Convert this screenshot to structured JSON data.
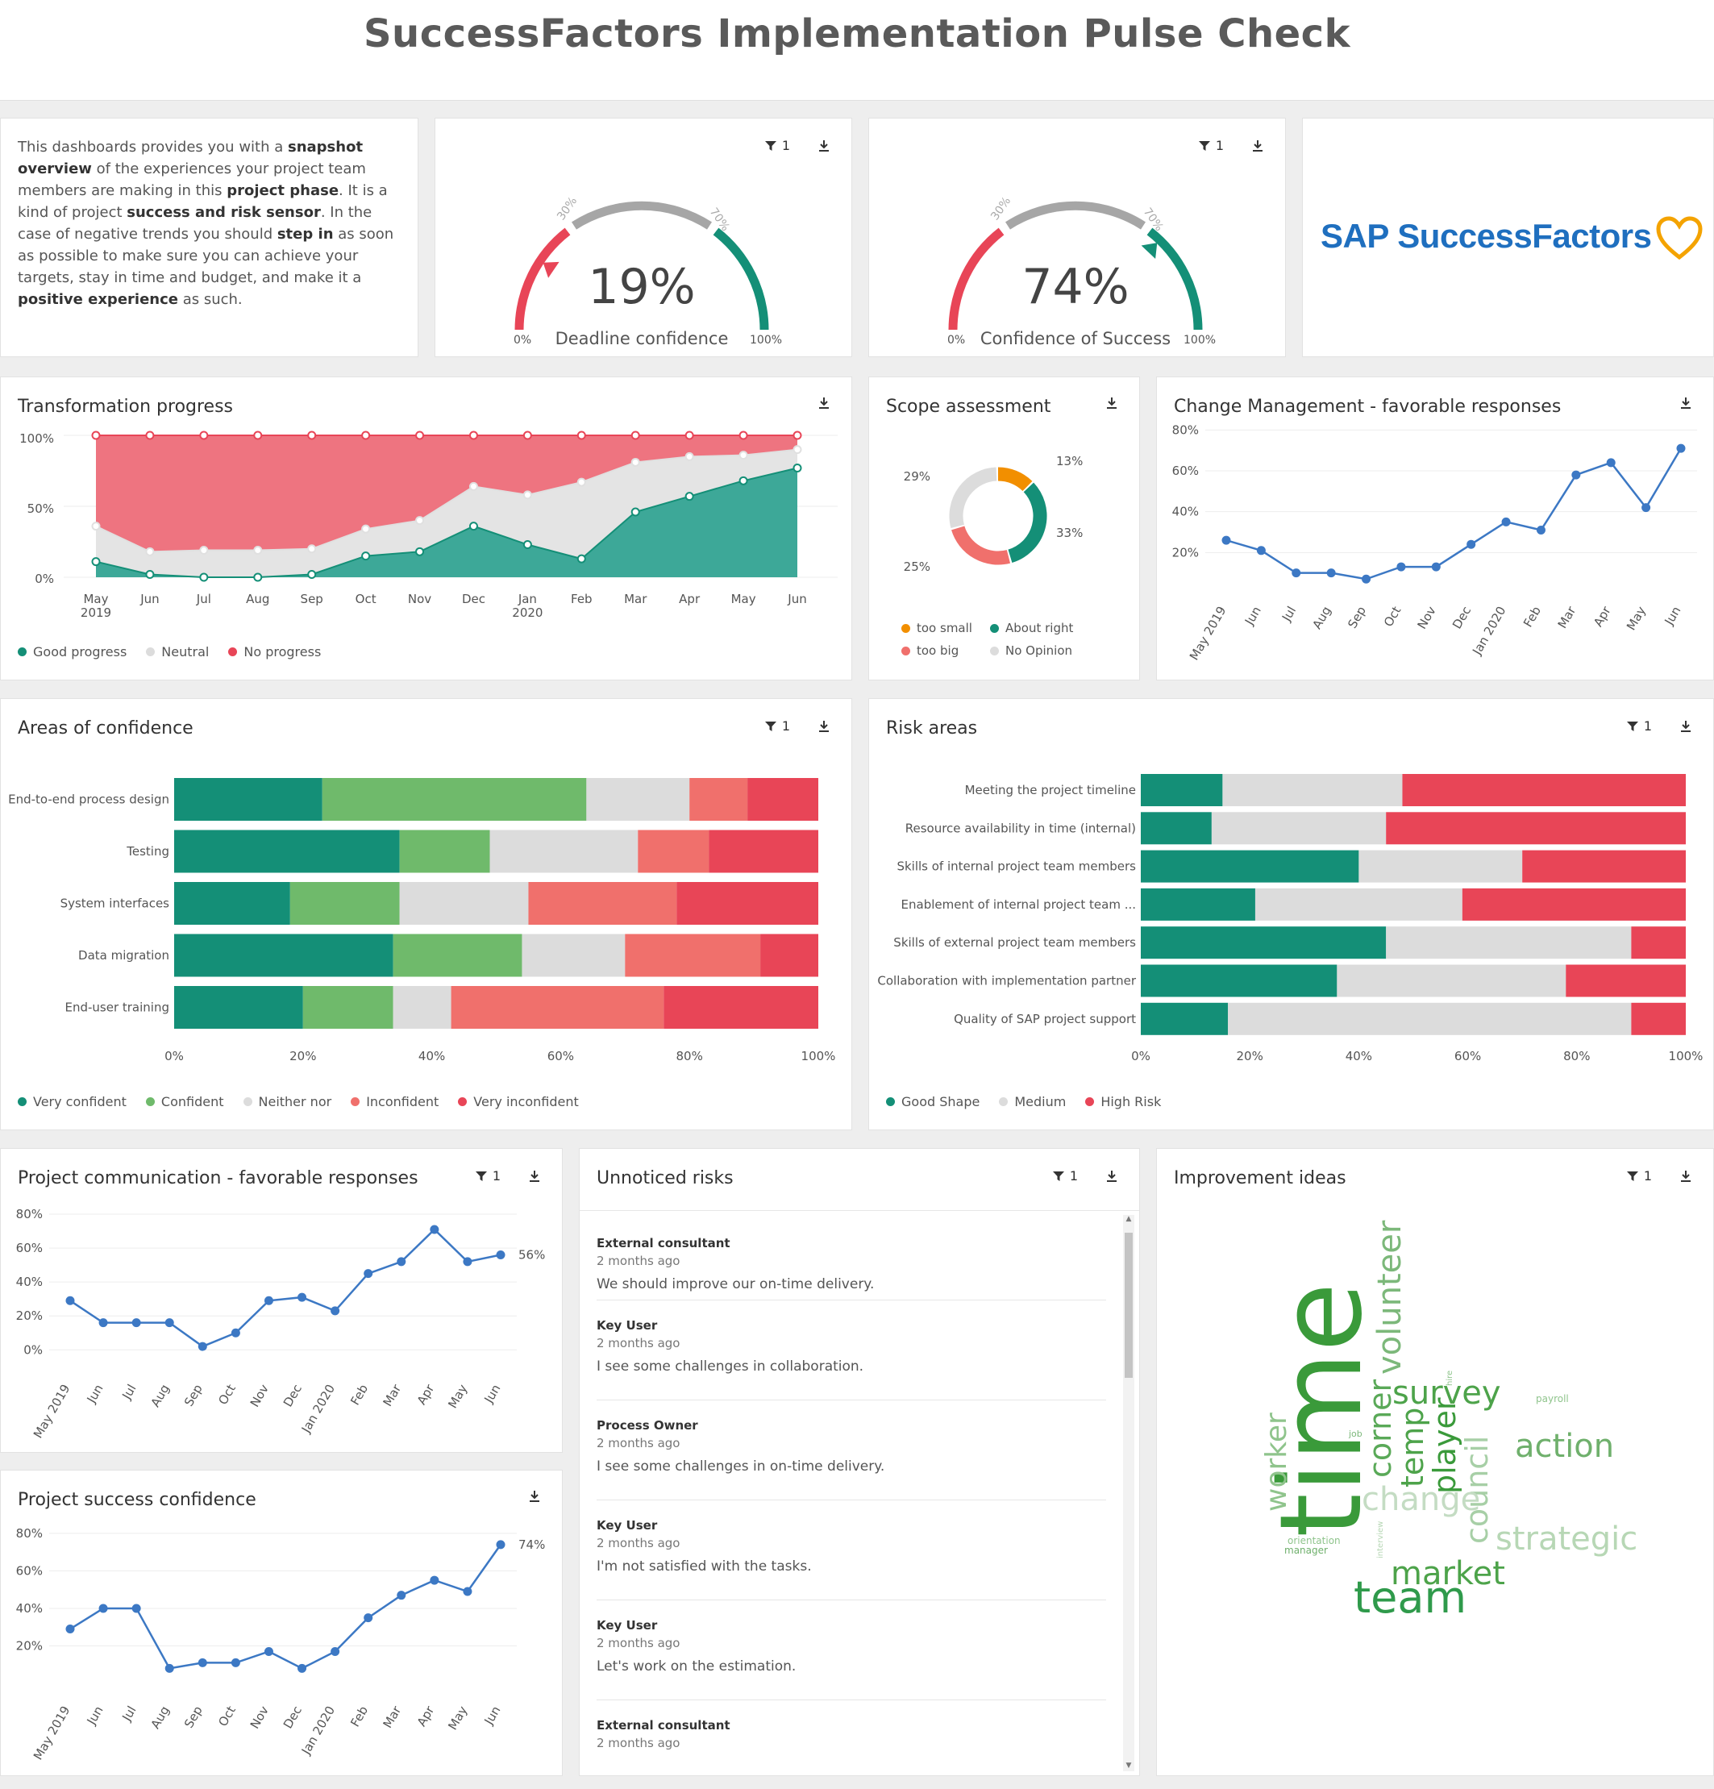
{
  "header": {
    "title": "SuccessFactors Implementation Pulse Check"
  },
  "intro": {
    "p1": "This dashboards provides you with a ",
    "b1": "snapshot overview",
    "p2": " of the experiences your project team members are making in this ",
    "b2": "project phase",
    "p3": ". It is a kind of project ",
    "b3": "success and risk sensor",
    "p4": ". In the case of negative trends you should ",
    "b4": "step in",
    "p5": " as soon as possible to make sure you can achieve your targets, stay in time and budget, and make it a ",
    "b5": "positive experience",
    "p6": " as such."
  },
  "filter_count": "1",
  "gauges": [
    {
      "value": 19,
      "value_label": "19%",
      "label": "Deadline confidence",
      "t30": "30%",
      "t70": "70%",
      "min": "0%",
      "max": "100%"
    },
    {
      "value": 74,
      "value_label": "74%",
      "label": "Confidence of Success",
      "t30": "30%",
      "t70": "70%",
      "min": "0%",
      "max": "100%"
    }
  ],
  "logo": {
    "text": "SAP SuccessFactors"
  },
  "colors": {
    "teal": "#148f77",
    "green": "#6fba6b",
    "grey": "#dcdcdc",
    "salmon": "#f0706c",
    "red": "#e84557",
    "orange": "#f28f00",
    "blue": "#3c78c4",
    "gauge_grey": "#a6a6a6"
  },
  "transformation": {
    "title": "Transformation progress",
    "yticks": [
      "100%",
      "50%",
      "0%"
    ],
    "xlabels": [
      [
        "May",
        "2019"
      ],
      [
        "Jun",
        ""
      ],
      [
        "Jul",
        ""
      ],
      [
        "Aug",
        ""
      ],
      [
        "Sep",
        ""
      ],
      [
        "Oct",
        ""
      ],
      [
        "Nov",
        ""
      ],
      [
        "Dec",
        ""
      ],
      [
        "Jan",
        "2020"
      ],
      [
        "Feb",
        ""
      ],
      [
        "Mar",
        ""
      ],
      [
        "Apr",
        ""
      ],
      [
        "May",
        ""
      ],
      [
        "Jun",
        ""
      ]
    ],
    "legend": [
      "Good progress",
      "Neutral",
      "No progress"
    ]
  },
  "scope": {
    "title": "Scope assessment",
    "legend": [
      "too small",
      "About right",
      "too big",
      "No Opinion"
    ]
  },
  "change_mgmt": {
    "title": "Change Management - favorable responses",
    "yticks": [
      "80%",
      "60%",
      "40%",
      "20%"
    ]
  },
  "areas": {
    "title": "Areas of confidence",
    "xticks": [
      "0%",
      "20%",
      "40%",
      "60%",
      "80%",
      "100%"
    ],
    "legend": [
      "Very confident",
      "Confident",
      "Neither nor",
      "Inconfident",
      "Very inconfident"
    ]
  },
  "risk": {
    "title": "Risk areas",
    "xticks": [
      "0%",
      "20%",
      "40%",
      "60%",
      "80%",
      "100%"
    ],
    "legend": [
      "Good Shape",
      "Medium",
      "High Risk"
    ]
  },
  "project_comm": {
    "title": "Project communication - favorable responses",
    "yticks": [
      "80%",
      "60%",
      "40%",
      "20%",
      "0%"
    ]
  },
  "project_success": {
    "title": "Project success confidence",
    "yticks": [
      "80%",
      "60%",
      "40%",
      "20%"
    ]
  },
  "unnoticed": {
    "title": "Unnoticed risks",
    "items": [
      {
        "author": "External consultant",
        "time": "2 months ago",
        "text": "We should improve our on-time delivery."
      },
      {
        "author": "Key User",
        "time": "2 months ago",
        "text": "I see some challenges in collaboration."
      },
      {
        "author": "Process Owner",
        "time": "2 months ago",
        "text": "I see some challenges in on-time delivery."
      },
      {
        "author": "Key User",
        "time": "2 months ago",
        "text": "I'm not satisfied with the tasks."
      },
      {
        "author": "Key User",
        "time": "2 months ago",
        "text": "Let's work on the estimation."
      },
      {
        "author": "External consultant",
        "time": "2 months ago",
        "text": ""
      }
    ]
  },
  "improvement": {
    "title": "Improvement ideas",
    "words": [
      "time",
      "volunteer",
      "survey",
      "corner",
      "temp",
      "player",
      "council",
      "change",
      "action",
      "strategic",
      "market",
      "team",
      "worker",
      "payroll",
      "hire",
      "job",
      "orientation",
      "manager",
      "interview"
    ]
  },
  "chart_data": [
    {
      "type": "area",
      "title": "Transformation progress",
      "categories": [
        "May 2019",
        "Jun",
        "Jul",
        "Aug",
        "Sep",
        "Oct",
        "Nov",
        "Dec",
        "Jan 2020",
        "Feb",
        "Mar",
        "Apr",
        "May",
        "Jun"
      ],
      "ylim": [
        0,
        100
      ],
      "series": [
        {
          "name": "Good progress",
          "values": [
            11,
            2,
            0,
            0,
            2,
            15,
            18,
            36,
            23,
            13,
            46,
            57,
            68,
            77
          ]
        },
        {
          "name": "Neutral",
          "values": [
            25,
            16,
            19,
            19,
            18,
            19,
            22,
            28,
            35,
            54,
            35,
            28,
            18,
            13
          ]
        },
        {
          "name": "No progress",
          "values": [
            64,
            82,
            81,
            81,
            80,
            66,
            60,
            36,
            42,
            33,
            19,
            15,
            14,
            10
          ]
        }
      ]
    },
    {
      "type": "pie",
      "title": "Scope assessment",
      "categories": [
        "too small",
        "About right",
        "too big",
        "No Opinion"
      ],
      "values": [
        13,
        33,
        25,
        29
      ]
    },
    {
      "type": "line",
      "title": "Change Management - favorable responses",
      "categories": [
        "May 2019",
        "Jun",
        "Jul",
        "Aug",
        "Sep",
        "Oct",
        "Nov",
        "Dec",
        "Jan 2020",
        "Feb",
        "Mar",
        "Apr",
        "May",
        "Jun"
      ],
      "ylim": [
        0,
        90
      ],
      "values": [
        26,
        21,
        10,
        10,
        7,
        13,
        13,
        24,
        35,
        31,
        58,
        64,
        42,
        71
      ]
    },
    {
      "type": "bar",
      "title": "Areas of confidence",
      "orientation": "horizontal-stacked-100",
      "categories": [
        "End-to-end process design",
        "Testing",
        "System interfaces",
        "Data migration",
        "End-user training"
      ],
      "series": [
        {
          "name": "Very confident",
          "values": [
            23,
            35,
            18,
            34,
            20
          ]
        },
        {
          "name": "Confident",
          "values": [
            41,
            14,
            17,
            20,
            14
          ]
        },
        {
          "name": "Neither nor",
          "values": [
            16,
            23,
            20,
            16,
            9
          ]
        },
        {
          "name": "Inconfident",
          "values": [
            9,
            11,
            23,
            21,
            33
          ]
        },
        {
          "name": "Very inconfident",
          "values": [
            11,
            17,
            22,
            9,
            24
          ]
        }
      ]
    },
    {
      "type": "bar",
      "title": "Risk areas",
      "orientation": "horizontal-stacked-100",
      "categories": [
        "Meeting the project timeline",
        "Resource availability in time (internal)",
        "Skills of internal project team members",
        "Enablement of internal project team ...",
        "Skills of external project team members",
        "Collaboration with implementation partner",
        "Quality of SAP project support"
      ],
      "series": [
        {
          "name": "Good Shape",
          "values": [
            15,
            13,
            40,
            21,
            45,
            36,
            16
          ]
        },
        {
          "name": "Medium",
          "values": [
            33,
            32,
            30,
            38,
            45,
            42,
            74
          ]
        },
        {
          "name": "High Risk",
          "values": [
            52,
            55,
            30,
            41,
            10,
            22,
            10
          ]
        }
      ]
    },
    {
      "type": "line",
      "title": "Project communication - favorable responses",
      "categories": [
        "May 2019",
        "Jun",
        "Jul",
        "Aug",
        "Sep",
        "Oct",
        "Nov",
        "Dec",
        "Jan 2020",
        "Feb",
        "Mar",
        "Apr",
        "May",
        "Jun"
      ],
      "ylim": [
        0,
        90
      ],
      "values": [
        29,
        16,
        16,
        16,
        2,
        10,
        29,
        31,
        23,
        45,
        52,
        71,
        52,
        56
      ],
      "annotation": "56%"
    },
    {
      "type": "line",
      "title": "Project success confidence",
      "categories": [
        "May 2019",
        "Jun",
        "Jul",
        "Aug",
        "Sep",
        "Oct",
        "Nov",
        "Dec",
        "Jan 2020",
        "Feb",
        "Mar",
        "Apr",
        "May",
        "Jun"
      ],
      "ylim": [
        0,
        90
      ],
      "values": [
        29,
        40,
        40,
        8,
        11,
        11,
        17,
        8,
        17,
        35,
        47,
        55,
        49,
        74
      ],
      "annotation": "74%"
    }
  ]
}
